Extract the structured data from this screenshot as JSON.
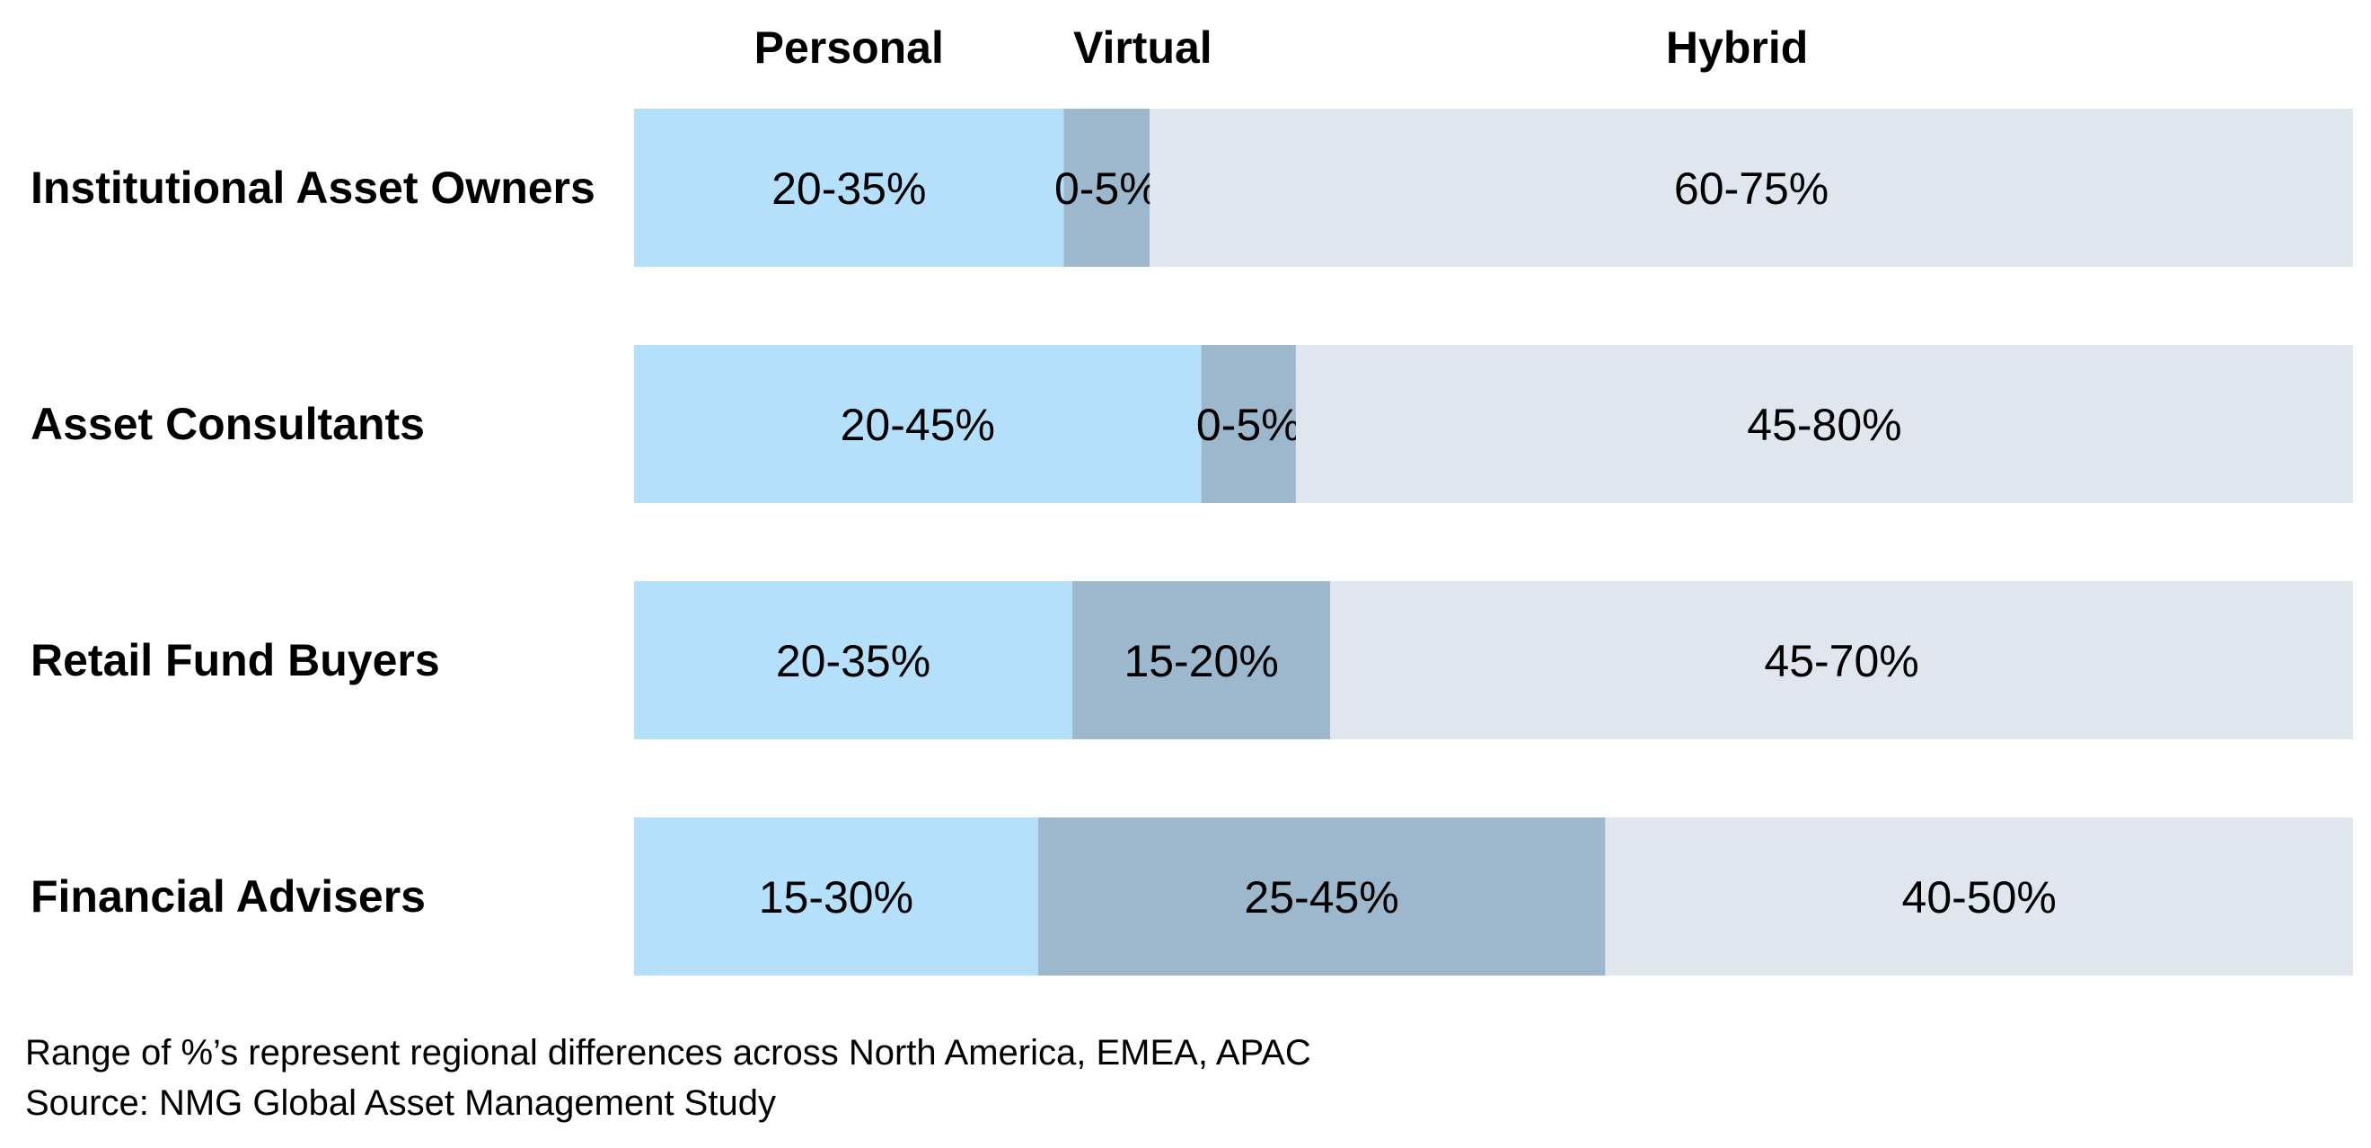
{
  "chart_data": {
    "type": "bar",
    "orientation": "horizontal",
    "stacked": true,
    "title": "",
    "xlabel": "",
    "ylabel": "",
    "grid": false,
    "legend": "top",
    "categories": [
      "Institutional Asset Owners",
      "Asset Consultants",
      "Retail Fund Buyers",
      "Financial Advisers"
    ],
    "series": [
      {
        "name": "Personal",
        "color": "#b5e0fb",
        "values": [
          25,
          33,
          25.5,
          23.5
        ],
        "labels": [
          "20-35%",
          "20-45%",
          "20-35%",
          "15-30%"
        ]
      },
      {
        "name": "Virtual",
        "color": "#9db8cd",
        "values": [
          5,
          5.5,
          15,
          33
        ],
        "labels": [
          "0-5%",
          "0-5%",
          "15-20%",
          "25-45%"
        ]
      },
      {
        "name": "Hybrid",
        "color": "#dfe6ee",
        "values": [
          70,
          61.5,
          59.5,
          43.5
        ],
        "labels": [
          "60-75%",
          "45-80%",
          "45-70%",
          "40-50%"
        ]
      }
    ],
    "xlim": [
      0,
      100
    ]
  },
  "footnotes": [
    "Range of %’s represent regional differences across North America, EMEA, APAC",
    "Source: NMG Global Asset Management Study"
  ]
}
